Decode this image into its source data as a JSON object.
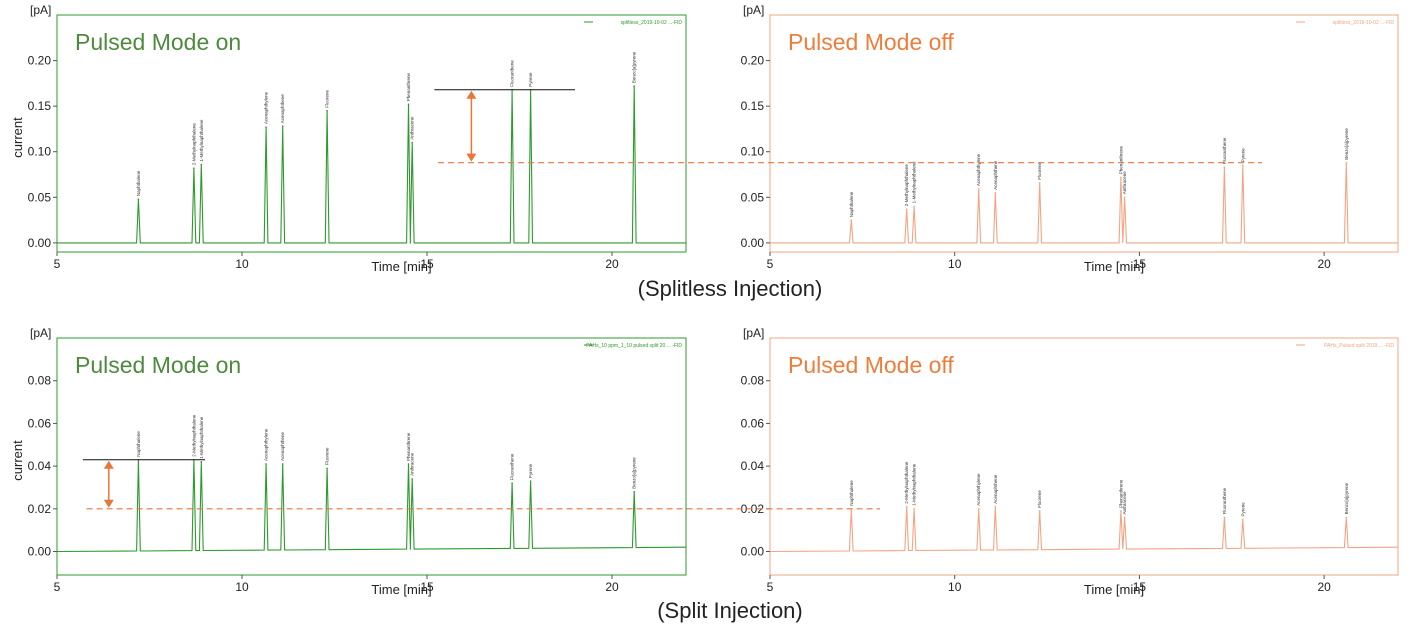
{
  "captions": {
    "top": "(Splitless Injection)",
    "bottom": "(Split Injection)"
  },
  "colors": {
    "on": "#2e9a2e",
    "on_title": "#4e8a3e",
    "off": "#f2a584",
    "off_title": "#ee7d3b",
    "annotation": "#e8763a"
  },
  "chart_data": [
    {
      "type": "line",
      "title": "Pulsed Mode on",
      "panel": "top-left",
      "mode": "on",
      "xlabel": "Time [min]",
      "ylabel": "current",
      "yunit": "[pA]",
      "xlim": [
        5,
        22
      ],
      "ylim": [
        -0.01,
        0.25
      ],
      "xticks": [
        5,
        10,
        15,
        20
      ],
      "yticks": [
        0.0,
        0.05,
        0.1,
        0.15,
        0.2
      ],
      "ytick_labels": [
        "0.00",
        "0.05",
        "0.10",
        "0.15",
        "0.20"
      ],
      "legend": "splitless_2019-10-02 ...-FID",
      "baseline": 0.0,
      "peaks": [
        {
          "x": 7.2,
          "y": 0.048,
          "label": "Naphthalene"
        },
        {
          "x": 8.7,
          "y": 0.082,
          "label": "2-Methylnaphthalene"
        },
        {
          "x": 8.9,
          "y": 0.086,
          "label": "1-Methylnaphthalene"
        },
        {
          "x": 10.65,
          "y": 0.127,
          "label": "Acenaphthylene"
        },
        {
          "x": 11.1,
          "y": 0.128,
          "label": "Acenaphthene"
        },
        {
          "x": 12.3,
          "y": 0.145,
          "label": "Fluorene"
        },
        {
          "x": 14.5,
          "y": 0.152,
          "label": "Phenanthrene"
        },
        {
          "x": 14.6,
          "y": 0.11,
          "label": "Anthracene"
        },
        {
          "x": 17.3,
          "y": 0.168,
          "label": "Fluoranthene"
        },
        {
          "x": 17.8,
          "y": 0.168,
          "label": "Pyrene"
        },
        {
          "x": 20.6,
          "y": 0.172,
          "label": "Benzo[a]pyrene"
        }
      ]
    },
    {
      "type": "line",
      "title": "Pulsed Mode off",
      "panel": "top-right",
      "mode": "off",
      "xlabel": "Time [min]",
      "ylabel": "",
      "yunit": "[pA]",
      "xlim": [
        5,
        22
      ],
      "ylim": [
        -0.01,
        0.25
      ],
      "xticks": [
        5,
        10,
        15,
        20
      ],
      "yticks": [
        0.0,
        0.05,
        0.1,
        0.15,
        0.2
      ],
      "ytick_labels": [
        "0.00",
        "0.05",
        "0.10",
        "0.15",
        "0.20"
      ],
      "legend": "splitless_2019-10-02 ...-FID",
      "baseline": 0.0,
      "peaks": [
        {
          "x": 7.2,
          "y": 0.025,
          "label": "Naphthalene"
        },
        {
          "x": 8.7,
          "y": 0.037,
          "label": "2-Methylnaphthalene"
        },
        {
          "x": 8.9,
          "y": 0.04,
          "label": "1-Methylnaphthalene"
        },
        {
          "x": 10.65,
          "y": 0.059,
          "label": "Acenaphthylene"
        },
        {
          "x": 11.1,
          "y": 0.055,
          "label": "Acenaphthene"
        },
        {
          "x": 12.3,
          "y": 0.066,
          "label": "Fluorene"
        },
        {
          "x": 14.5,
          "y": 0.072,
          "label": "Phenanthrene"
        },
        {
          "x": 14.6,
          "y": 0.05,
          "label": "Anthracene"
        },
        {
          "x": 17.3,
          "y": 0.083,
          "label": "Fluoranthene"
        },
        {
          "x": 17.8,
          "y": 0.085,
          "label": "Pyrene"
        },
        {
          "x": 20.6,
          "y": 0.088,
          "label": "Benzo[a]pyrene"
        }
      ]
    },
    {
      "type": "line",
      "title": "Pulsed Mode on",
      "panel": "bottom-left",
      "mode": "on",
      "xlabel": "Time [min]",
      "ylabel": "current",
      "yunit": "[pA]",
      "xlim": [
        5,
        22
      ],
      "ylim": [
        -0.011,
        0.1
      ],
      "xticks": [
        5,
        10,
        15,
        20
      ],
      "yticks": [
        0.0,
        0.02,
        0.04,
        0.06,
        0.08
      ],
      "ytick_labels": [
        "0.00",
        "0.02",
        "0.04",
        "0.06",
        "0.08"
      ],
      "legend": "PAHs_10 ppm_1_10 pulsed split 20 ... -FID",
      "baseline": 0.0,
      "baseline_end": 0.002,
      "peaks": [
        {
          "x": 7.2,
          "y": 0.043,
          "label": "Naphthalene"
        },
        {
          "x": 8.7,
          "y": 0.043,
          "label": "2-Methylnaphthalene"
        },
        {
          "x": 8.9,
          "y": 0.042,
          "label": "1-Methylnaphthalene"
        },
        {
          "x": 10.65,
          "y": 0.041,
          "label": "Acenaphthylene"
        },
        {
          "x": 11.1,
          "y": 0.041,
          "label": "Acenaphthene"
        },
        {
          "x": 12.3,
          "y": 0.039,
          "label": "Fluorene"
        },
        {
          "x": 14.5,
          "y": 0.041,
          "label": "Phenanthrene"
        },
        {
          "x": 14.6,
          "y": 0.034,
          "label": "Anthracene"
        },
        {
          "x": 17.3,
          "y": 0.032,
          "label": "Fluoranthene"
        },
        {
          "x": 17.8,
          "y": 0.033,
          "label": "Pyrene"
        },
        {
          "x": 20.6,
          "y": 0.028,
          "label": "Benzo[a]pyrene"
        }
      ]
    },
    {
      "type": "line",
      "title": "Pulsed Mode off",
      "panel": "bottom-right",
      "mode": "off",
      "xlabel": "Time [min]",
      "ylabel": "",
      "yunit": "[pA]",
      "xlim": [
        5,
        22
      ],
      "ylim": [
        -0.011,
        0.1
      ],
      "xticks": [
        5,
        10,
        15,
        20
      ],
      "yticks": [
        0.0,
        0.02,
        0.04,
        0.06,
        0.08
      ],
      "ytick_labels": [
        "0.00",
        "0.02",
        "0.04",
        "0.06",
        "0.08"
      ],
      "legend": "PAHs_Pulsed split 2019 ... -FID",
      "baseline": 0.0,
      "baseline_end": 0.002,
      "peaks": [
        {
          "x": 7.2,
          "y": 0.02,
          "label": "Naphthalene"
        },
        {
          "x": 8.7,
          "y": 0.021,
          "label": "2-Methylnaphthalene"
        },
        {
          "x": 8.9,
          "y": 0.02,
          "label": "1-Methylnaphthalene"
        },
        {
          "x": 10.65,
          "y": 0.02,
          "label": "Acenaphthylene"
        },
        {
          "x": 11.1,
          "y": 0.021,
          "label": "Acenaphthene"
        },
        {
          "x": 12.3,
          "y": 0.019,
          "label": "Fluorene"
        },
        {
          "x": 14.5,
          "y": 0.019,
          "label": "Phenanthrene"
        },
        {
          "x": 14.6,
          "y": 0.016,
          "label": "Anthracene"
        },
        {
          "x": 17.3,
          "y": 0.016,
          "label": "Fluoranthene"
        },
        {
          "x": 17.8,
          "y": 0.015,
          "label": "Pyrene"
        },
        {
          "x": 20.6,
          "y": 0.016,
          "label": "Benzo[a]pyrene"
        }
      ]
    }
  ],
  "annotations": [
    {
      "section": "top",
      "solid_level": 0.168,
      "dashed_level": 0.088
    },
    {
      "section": "bottom",
      "solid_level": 0.043,
      "dashed_level": 0.02
    }
  ]
}
